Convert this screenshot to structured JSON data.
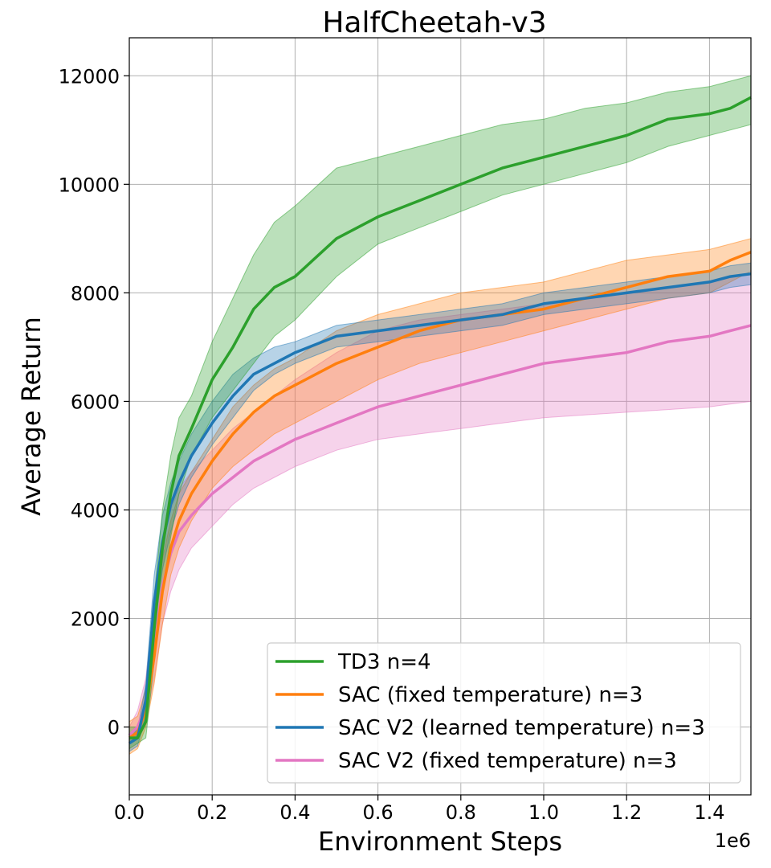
{
  "chart_data": {
    "type": "line",
    "title": "HalfCheetah-v3",
    "xlabel": "Environment Steps",
    "ylabel": "Average Return",
    "x_offset_label": "1e6",
    "xlim": [
      0,
      1.5
    ],
    "ylim": [
      -1250,
      12700
    ],
    "xticks": [
      0.0,
      0.2,
      0.4,
      0.6,
      0.8,
      1.0,
      1.2,
      1.4
    ],
    "xtick_labels": [
      "0.0",
      "0.2",
      "0.4",
      "0.6",
      "0.8",
      "1.0",
      "1.2",
      "1.4"
    ],
    "yticks": [
      0,
      2000,
      4000,
      6000,
      8000,
      10000,
      12000
    ],
    "ytick_labels": [
      "0",
      "2000",
      "4000",
      "6000",
      "8000",
      "10000",
      "12000"
    ],
    "grid": true,
    "legend_position": "bottom-right",
    "series": [
      {
        "name": "TD3 n=4",
        "color": "#2ca02c",
        "x": [
          0.0,
          0.02,
          0.04,
          0.06,
          0.08,
          0.1,
          0.12,
          0.15,
          0.2,
          0.25,
          0.3,
          0.35,
          0.4,
          0.5,
          0.6,
          0.7,
          0.8,
          0.9,
          1.0,
          1.1,
          1.2,
          1.3,
          1.4,
          1.45,
          1.5
        ],
        "y": [
          -200,
          -200,
          100,
          1800,
          3300,
          4300,
          5000,
          5500,
          6400,
          7000,
          7700,
          8100,
          8300,
          9000,
          9400,
          9700,
          10000,
          10300,
          10500,
          10700,
          10900,
          11200,
          11300,
          11400,
          11600
        ],
        "lower": [
          -400,
          -300,
          -200,
          1200,
          2500,
          3500,
          4300,
          5000,
          5700,
          6200,
          6700,
          7200,
          7500,
          8300,
          8900,
          9200,
          9500,
          9800,
          10000,
          10200,
          10400,
          10700,
          10900,
          11000,
          11100
        ],
        "upper": [
          0,
          0,
          400,
          2400,
          4000,
          5000,
          5700,
          6100,
          7100,
          7900,
          8700,
          9300,
          9600,
          10300,
          10500,
          10700,
          10900,
          11100,
          11200,
          11400,
          11500,
          11700,
          11800,
          11900,
          12000
        ]
      },
      {
        "name": "SAC (fixed temperature) n=3",
        "color": "#ff7f0e",
        "x": [
          0.0,
          0.02,
          0.04,
          0.06,
          0.08,
          0.1,
          0.12,
          0.15,
          0.2,
          0.25,
          0.3,
          0.35,
          0.4,
          0.5,
          0.6,
          0.7,
          0.8,
          0.9,
          1.0,
          1.1,
          1.2,
          1.3,
          1.4,
          1.45,
          1.5
        ],
        "y": [
          -200,
          -100,
          300,
          1300,
          2500,
          3300,
          3800,
          4300,
          4900,
          5400,
          5800,
          6100,
          6300,
          6700,
          7000,
          7300,
          7500,
          7600,
          7700,
          7900,
          8100,
          8300,
          8400,
          8600,
          8750
        ],
        "lower": [
          -500,
          -400,
          0,
          800,
          1900,
          2800,
          3300,
          3800,
          4400,
          4800,
          5100,
          5400,
          5600,
          6000,
          6400,
          6700,
          6900,
          7100,
          7300,
          7500,
          7700,
          7900,
          8000,
          8200,
          8400
        ],
        "upper": [
          100,
          200,
          700,
          1900,
          3100,
          3800,
          4300,
          4700,
          5300,
          5900,
          6300,
          6600,
          6800,
          7300,
          7600,
          7800,
          8000,
          8100,
          8200,
          8400,
          8600,
          8700,
          8800,
          8900,
          9000
        ]
      },
      {
        "name": "SAC V2 (learned temperature) n=3",
        "color": "#1f77b4",
        "x": [
          0.0,
          0.02,
          0.04,
          0.06,
          0.08,
          0.1,
          0.12,
          0.15,
          0.2,
          0.25,
          0.3,
          0.35,
          0.4,
          0.5,
          0.6,
          0.7,
          0.8,
          0.9,
          1.0,
          1.1,
          1.2,
          1.3,
          1.4,
          1.45,
          1.5
        ],
        "y": [
          -300,
          -200,
          500,
          2300,
          3400,
          4100,
          4500,
          5000,
          5600,
          6100,
          6500,
          6700,
          6900,
          7200,
          7300,
          7400,
          7500,
          7600,
          7800,
          7900,
          8000,
          8100,
          8200,
          8300,
          8350
        ],
        "lower": [
          -450,
          -350,
          200,
          1800,
          2900,
          3600,
          4100,
          4600,
          5200,
          5700,
          6200,
          6500,
          6700,
          7000,
          7100,
          7200,
          7300,
          7400,
          7600,
          7700,
          7800,
          7900,
          8000,
          8100,
          8150
        ],
        "upper": [
          -150,
          -50,
          800,
          2800,
          3900,
          4500,
          4900,
          5400,
          6000,
          6500,
          6800,
          7000,
          7100,
          7400,
          7500,
          7600,
          7700,
          7800,
          8000,
          8100,
          8200,
          8300,
          8400,
          8500,
          8550
        ]
      },
      {
        "name": "SAC V2 (fixed temperature) n=3",
        "color": "#e377c2",
        "x": [
          0.0,
          0.02,
          0.04,
          0.06,
          0.08,
          0.1,
          0.12,
          0.15,
          0.2,
          0.25,
          0.3,
          0.35,
          0.4,
          0.5,
          0.6,
          0.7,
          0.8,
          0.9,
          1.0,
          1.1,
          1.2,
          1.3,
          1.4,
          1.45,
          1.5
        ],
        "y": [
          -150,
          0,
          400,
          1500,
          2600,
          3200,
          3600,
          3900,
          4300,
          4600,
          4900,
          5100,
          5300,
          5600,
          5900,
          6100,
          6300,
          6500,
          6700,
          6800,
          6900,
          7100,
          7200,
          7300,
          7400
        ],
        "lower": [
          -300,
          -200,
          100,
          900,
          1900,
          2500,
          2900,
          3300,
          3700,
          4100,
          4400,
          4600,
          4800,
          5100,
          5300,
          5400,
          5500,
          5600,
          5700,
          5750,
          5800,
          5850,
          5900,
          5950,
          6000
        ],
        "upper": [
          0,
          300,
          900,
          2300,
          3400,
          4000,
          4400,
          4700,
          5100,
          5500,
          5800,
          6100,
          6400,
          6900,
          7300,
          7500,
          7600,
          7700,
          7800,
          7900,
          8000,
          8100,
          8200,
          8300,
          8350
        ]
      }
    ]
  }
}
